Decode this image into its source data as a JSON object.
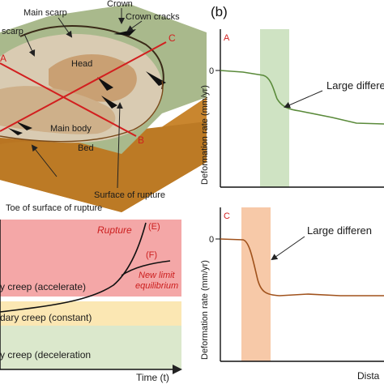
{
  "block_diagram": {
    "labels": {
      "crown": "Crown",
      "main_scarp": "Main scarp",
      "crown_cracks": "Crown cracks",
      "scarp": "scarp",
      "head": "Head",
      "main_body": "Main body",
      "bed": "Bed",
      "surface_of_rupture": "Surface of rupture",
      "toe_of_surface_of_rupture": "Toe of surface of rupture"
    },
    "section_letters": {
      "a": "A",
      "b": "B",
      "c": "C"
    },
    "colors": {
      "section_line": "#d21f1f",
      "soil": "#c07c2a",
      "top": "#a8b98a"
    }
  },
  "creep": {
    "zones": {
      "rupture": "Rupture",
      "tertiary": "y creep (accelerate)",
      "secondary": "dary creep (constant)",
      "primary": "y creep (deceleration"
    },
    "curve_labels": {
      "e": "(E)",
      "f": "(F)"
    },
    "new_limit": [
      "New limit",
      "equilibrium"
    ],
    "x_axis_label": "Time (t)",
    "colors": {
      "rupture": "#f4a7a7",
      "tertiary": "#ffffff",
      "secondary": "#fbe7b3",
      "primary": "#dbe8cc"
    }
  },
  "right_panel": {
    "panel_label": "(b)",
    "profiles": [
      {
        "tag": "A",
        "zero_tick": "0",
        "annotation": "Large differe",
        "y_label": "Deformation rate (mm/yr)",
        "highlight_color": "#cfe3c3",
        "line_color": "#5a8a3a"
      },
      {
        "tag": "C",
        "zero_tick": "0",
        "annotation": "Large differen",
        "y_label": "Deformation rate (mm/yr)",
        "highlight_color": "#f7c9a8",
        "line_color": "#a0521c"
      }
    ],
    "x_axis_label": "Dista"
  }
}
